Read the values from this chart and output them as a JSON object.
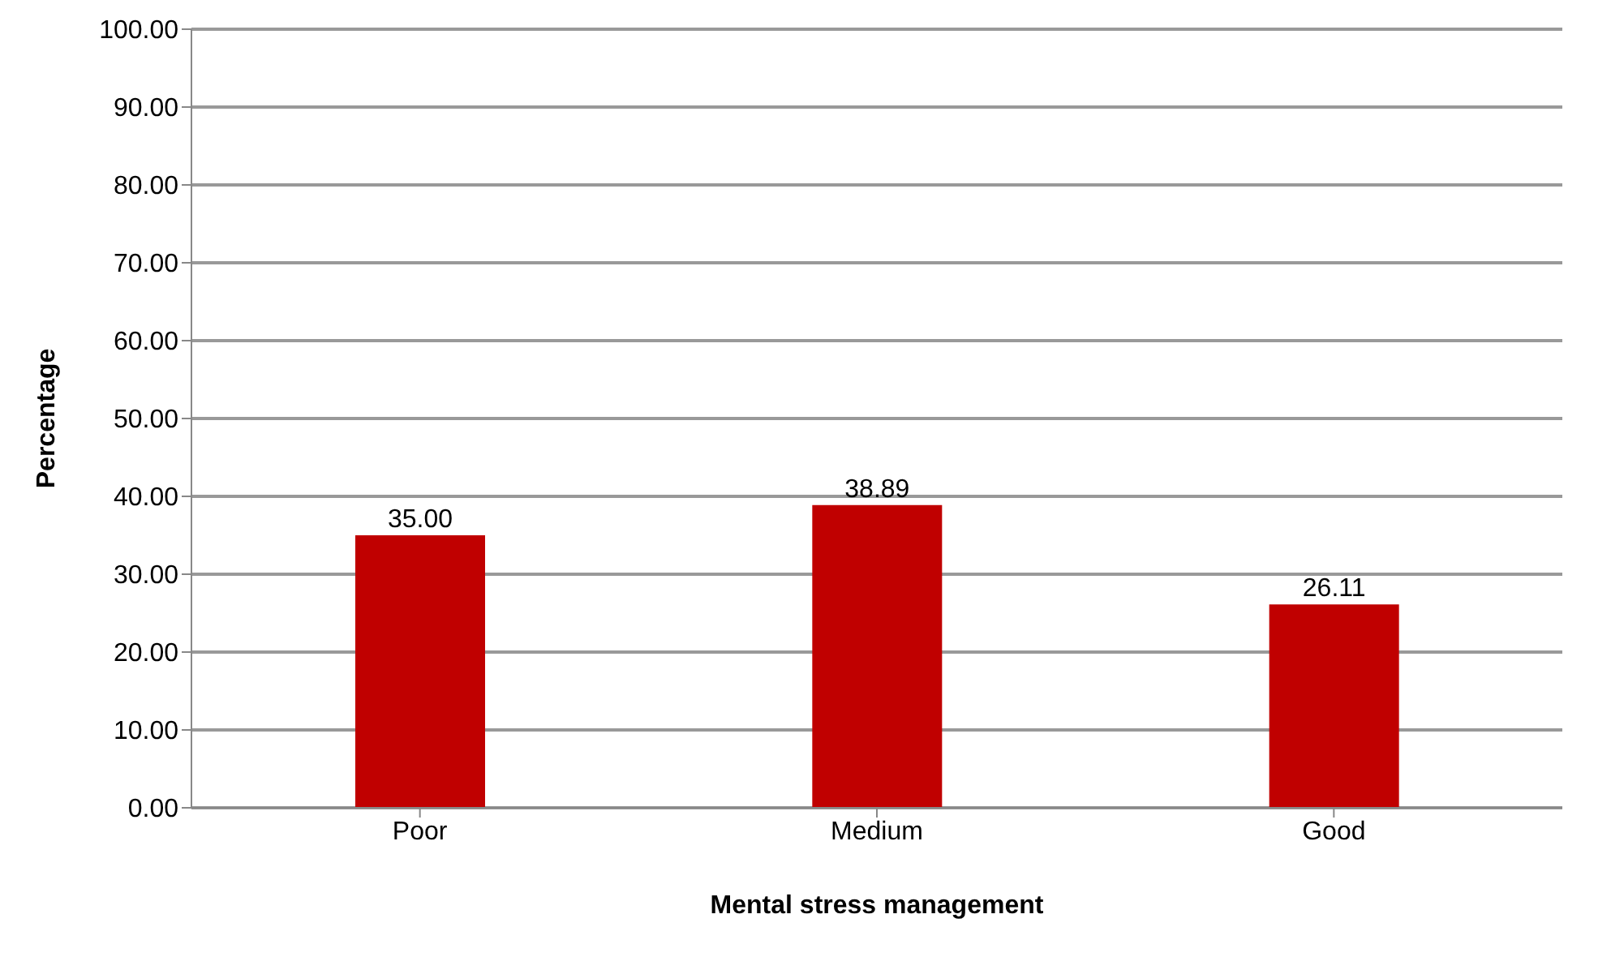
{
  "chart_data": {
    "type": "bar",
    "xlabel": "Mental stress management",
    "ylabel": "Percentage",
    "categories": [
      "Poor",
      "Medium",
      "Good"
    ],
    "values": [
      35.0,
      38.89,
      26.11
    ],
    "value_labels": [
      "35.00",
      "38.89",
      "26.11"
    ],
    "color": "#c00000",
    "ylim": [
      0,
      100
    ],
    "yticks": [
      {
        "value": 0,
        "label": "0.00"
      },
      {
        "value": 10,
        "label": "10.00"
      },
      {
        "value": 20,
        "label": "20.00"
      },
      {
        "value": 30,
        "label": "30.00"
      },
      {
        "value": 40,
        "label": "40.00"
      },
      {
        "value": 50,
        "label": "50.00"
      },
      {
        "value": 60,
        "label": "60.00"
      },
      {
        "value": 70,
        "label": "70.00"
      },
      {
        "value": 80,
        "label": "80.00"
      },
      {
        "value": 90,
        "label": "90.00"
      },
      {
        "value": 100,
        "label": "100.00"
      }
    ],
    "grid": "y"
  }
}
